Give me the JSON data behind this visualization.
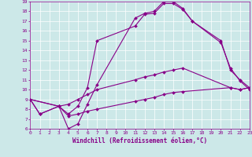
{
  "xlabel": "Windchill (Refroidissement éolien,°C)",
  "xlim": [
    0,
    23
  ],
  "ylim": [
    6,
    19
  ],
  "xticks": [
    0,
    1,
    2,
    3,
    4,
    5,
    6,
    7,
    8,
    9,
    10,
    11,
    12,
    13,
    14,
    15,
    16,
    17,
    18,
    19,
    20,
    21,
    22,
    23
  ],
  "yticks": [
    6,
    7,
    8,
    9,
    10,
    11,
    12,
    13,
    14,
    15,
    16,
    17,
    18,
    19
  ],
  "bg_color": "#cce8e8",
  "line_color": "#880088",
  "grid_color": "#aadddd",
  "line1_x": [
    0,
    1,
    3,
    4,
    5,
    6,
    7,
    11,
    12,
    13,
    14,
    15,
    16,
    17,
    20,
    21,
    22,
    23
  ],
  "line1_y": [
    9.0,
    7.5,
    8.3,
    6.0,
    6.5,
    8.5,
    10.5,
    17.3,
    17.8,
    18.0,
    19.0,
    19.0,
    18.3,
    17.0,
    15.0,
    12.0,
    11.0,
    10.2
  ],
  "line2_x": [
    0,
    1,
    3,
    4,
    5,
    6,
    7,
    11,
    12,
    13,
    14,
    15,
    16,
    17,
    20,
    21,
    22,
    23
  ],
  "line2_y": [
    9.0,
    7.5,
    8.3,
    7.5,
    8.3,
    10.2,
    15.0,
    16.5,
    17.7,
    17.8,
    18.8,
    18.8,
    18.2,
    17.0,
    14.8,
    12.2,
    10.9,
    10.0
  ],
  "line3_x": [
    0,
    3,
    4,
    5,
    6,
    7,
    11,
    12,
    13,
    14,
    15,
    16,
    21,
    22,
    23
  ],
  "line3_y": [
    9.0,
    8.3,
    8.5,
    9.0,
    9.5,
    10.0,
    11.0,
    11.3,
    11.5,
    11.8,
    12.0,
    12.2,
    10.2,
    10.0,
    10.2
  ],
  "line4_x": [
    0,
    3,
    4,
    5,
    6,
    7,
    11,
    12,
    13,
    14,
    15,
    16,
    21,
    22,
    23
  ],
  "line4_y": [
    9.0,
    8.3,
    7.3,
    7.5,
    7.8,
    8.0,
    8.8,
    9.0,
    9.2,
    9.5,
    9.7,
    9.8,
    10.2,
    10.0,
    10.2
  ],
  "markersize": 2,
  "linewidth": 0.8,
  "tick_fontsize": 4.5,
  "xlabel_fontsize": 5.5
}
